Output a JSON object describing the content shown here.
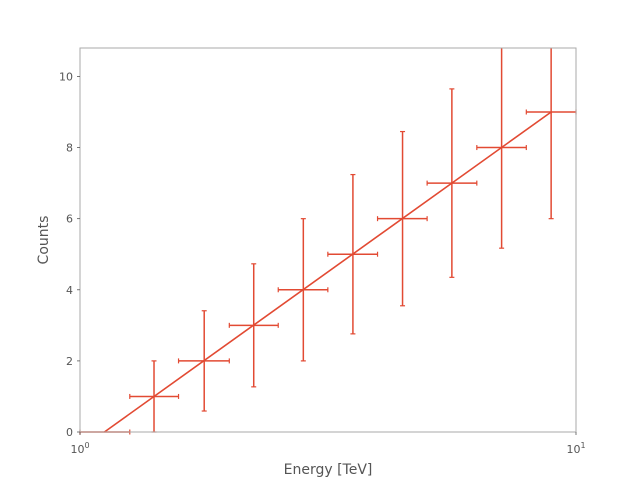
{
  "chart_data": {
    "type": "scatter",
    "title": "",
    "xlabel": "Energy [TeV]",
    "ylabel": "Counts",
    "xscale": "log",
    "xlim": [
      1,
      10
    ],
    "ylim": [
      0,
      10.8
    ],
    "grid": false,
    "x_ticks": [
      {
        "value": 1,
        "base": "10",
        "exp": "0"
      },
      {
        "value": 10,
        "base": "10",
        "exp": "1"
      }
    ],
    "y_ticks": [
      {
        "value": 0,
        "label": "0"
      },
      {
        "value": 2,
        "label": "2"
      },
      {
        "value": 4,
        "label": "4"
      },
      {
        "value": 6,
        "label": "6"
      },
      {
        "value": 8,
        "label": "8"
      },
      {
        "value": 10,
        "label": "10"
      }
    ],
    "series": [
      {
        "kind": "errorbar",
        "color": "#e24a33",
        "points": [
          {
            "x": 1.12,
            "xlo": 1.0,
            "xhi": 1.26,
            "y": 0,
            "ylo": 0,
            "yhi": 0
          },
          {
            "x": 1.41,
            "xlo": 1.26,
            "xhi": 1.58,
            "y": 1,
            "ylo": 0,
            "yhi": 2
          },
          {
            "x": 1.78,
            "xlo": 1.58,
            "xhi": 2.0,
            "y": 2,
            "ylo": 0.59,
            "yhi": 3.41
          },
          {
            "x": 2.24,
            "xlo": 2.0,
            "xhi": 2.51,
            "y": 3,
            "ylo": 1.27,
            "yhi": 4.73
          },
          {
            "x": 2.82,
            "xlo": 2.51,
            "xhi": 3.16,
            "y": 4,
            "ylo": 2.0,
            "yhi": 6.0
          },
          {
            "x": 3.55,
            "xlo": 3.16,
            "xhi": 3.98,
            "y": 5,
            "ylo": 2.76,
            "yhi": 7.24
          },
          {
            "x": 4.47,
            "xlo": 3.98,
            "xhi": 5.01,
            "y": 6,
            "ylo": 3.55,
            "yhi": 8.45
          },
          {
            "x": 5.62,
            "xlo": 5.01,
            "xhi": 6.31,
            "y": 7,
            "ylo": 4.35,
            "yhi": 9.65
          },
          {
            "x": 7.08,
            "xlo": 6.31,
            "xhi": 7.94,
            "y": 8,
            "ylo": 5.17,
            "yhi": 10.83
          },
          {
            "x": 8.91,
            "xlo": 7.94,
            "xhi": 10.0,
            "y": 9,
            "ylo": 6.0,
            "yhi": 12.0
          }
        ]
      },
      {
        "kind": "line",
        "color": "#e24a33",
        "x": [
          1.12,
          8.91
        ],
        "y": [
          0,
          9
        ]
      }
    ]
  }
}
